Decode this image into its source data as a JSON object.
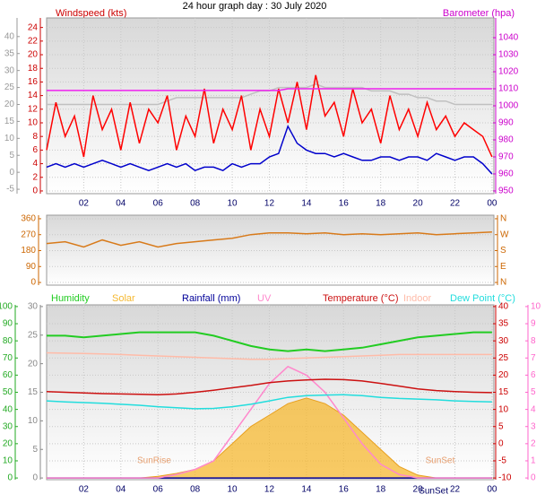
{
  "chart_data": [
    {
      "type": "line",
      "title": "24 hour graph day : 30 July 2020",
      "ylabel": "Windspeed (kts)",
      "y2label": "Barometer (hpa)",
      "grid": true,
      "x": [
        0,
        0.5,
        1,
        1.5,
        2,
        2.5,
        3,
        3.5,
        4,
        4.5,
        5,
        5.5,
        6,
        6.5,
        7,
        7.5,
        8,
        8.5,
        9,
        9.5,
        10,
        10.5,
        11,
        11.5,
        12,
        12.5,
        13,
        13.5,
        14,
        14.5,
        15,
        15.5,
        16,
        16.5,
        17,
        17.5,
        18,
        18.5,
        19,
        19.5,
        20,
        20.5,
        21,
        21.5,
        22,
        22.5,
        23,
        23.5,
        24
      ],
      "xlim": [
        0,
        24.1
      ],
      "xticks": [
        {
          "value": 2,
          "label": "02"
        },
        {
          "value": 4,
          "label": "04"
        },
        {
          "value": 6,
          "label": "06"
        },
        {
          "value": 8,
          "label": "08"
        },
        10,
        12,
        14,
        16,
        18,
        20,
        22,
        {
          "value": 24,
          "label": "00"
        }
      ],
      "ylim": [
        -0.4,
        25.4
      ],
      "yticks": [
        0,
        2,
        4,
        6,
        8,
        10,
        12,
        14,
        16,
        18,
        20,
        22,
        24
      ],
      "y3lim": [
        -6.3,
        45.5
      ],
      "y3ticks": [
        -5,
        0,
        5,
        10,
        15,
        20,
        25,
        30,
        35,
        40
      ],
      "y2lim": [
        948.4,
        1051.6
      ],
      "y2ticks": [
        950,
        960,
        970,
        980,
        990,
        1000,
        1010,
        1020,
        1030,
        1040
      ],
      "series": [
        {
          "color": "#c0c0c0",
          "axis": "y3",
          "values": [
            20,
            20,
            20,
            20,
            20,
            20,
            20,
            20,
            20,
            20,
            20,
            20,
            20,
            21,
            22,
            22,
            22,
            22,
            22,
            22,
            22,
            22,
            23,
            24,
            24,
            25,
            25,
            25,
            25,
            26,
            25,
            25,
            25,
            25,
            25,
            24,
            24,
            24,
            23,
            23,
            22,
            22,
            21,
            21,
            20,
            20,
            20,
            20,
            20
          ]
        },
        {
          "color": "#ff0000",
          "values": [
            6,
            13,
            8,
            11,
            5,
            14,
            9,
            12,
            6,
            13,
            7,
            12,
            10,
            14,
            6,
            11,
            8,
            15,
            7,
            12,
            9,
            14,
            6,
            12,
            8,
            15,
            10,
            16,
            9,
            17,
            11,
            13,
            8,
            15,
            10,
            12,
            7,
            14,
            9,
            12,
            8,
            13,
            9,
            11,
            8,
            10,
            9,
            8,
            5
          ]
        },
        {
          "color": "#0000cc",
          "values": [
            3.5,
            4,
            3.5,
            4,
            3.5,
            4,
            4.5,
            4,
            3.5,
            4,
            3.5,
            3,
            3.5,
            4,
            3.5,
            4,
            3,
            3.5,
            3.5,
            3,
            4,
            3.5,
            4,
            4,
            5,
            5.5,
            9.5,
            7,
            6,
            5.5,
            5.5,
            5,
            5.5,
            5,
            4.5,
            4.5,
            5,
            5,
            4.5,
            5,
            5,
            4.5,
            5.5,
            5,
            4.5,
            5,
            5,
            4,
            2.5
          ]
        },
        {
          "color": "#ee22ee",
          "axis": "y2",
          "values": [
            1009,
            1009,
            1009,
            1009,
            1009,
            1009,
            1009,
            1009,
            1009,
            1009,
            1009,
            1009,
            1009,
            1009,
            1009,
            1009,
            1009,
            1009,
            1009,
            1009,
            1009,
            1009,
            1009,
            1009,
            1009,
            1009,
            1010,
            1010,
            1010,
            1010,
            1010,
            1010,
            1010,
            1010,
            1010,
            1010,
            1010,
            1010,
            1010,
            1010,
            1010,
            1010,
            1010,
            1010,
            1010,
            1010,
            1010,
            1010,
            1010
          ]
        }
      ]
    },
    {
      "type": "line",
      "grid": true,
      "x": [
        0,
        1,
        2,
        3,
        4,
        5,
        6,
        7,
        8,
        9,
        10,
        11,
        12,
        13,
        14,
        15,
        16,
        17,
        18,
        19,
        20,
        21,
        22,
        23,
        24
      ],
      "xlim": [
        0,
        24.1
      ],
      "ylim": [
        -15,
        380
      ],
      "yticks": [
        0,
        90,
        180,
        270,
        360
      ],
      "y2lim": [
        -15,
        380
      ],
      "y2ticks": [
        {
          "value": 0,
          "label": "N"
        },
        {
          "value": 90,
          "label": "E"
        },
        {
          "value": 180,
          "label": "S"
        },
        {
          "value": 270,
          "label": "W"
        },
        {
          "value": 360,
          "label": "N"
        }
      ],
      "series": [
        {
          "color": "#d87a1a",
          "values": [
            220,
            230,
            200,
            240,
            210,
            230,
            200,
            220,
            230,
            240,
            250,
            270,
            280,
            280,
            275,
            280,
            270,
            275,
            270,
            275,
            280,
            270,
            275,
            280,
            285
          ]
        }
      ]
    },
    {
      "type": "line",
      "grid": true,
      "annotations": [
        "SunRise",
        "SunSet",
        "SunSet"
      ],
      "x": [
        0,
        1,
        2,
        3,
        4,
        5,
        6,
        7,
        8,
        9,
        10,
        11,
        12,
        13,
        14,
        15,
        16,
        17,
        18,
        19,
        20,
        21,
        22,
        23,
        24
      ],
      "xlim": [
        0,
        24.1
      ],
      "xticks": [
        {
          "value": 2,
          "label": "02"
        },
        {
          "value": 4,
          "label": "04"
        },
        {
          "value": 6,
          "label": "06"
        },
        {
          "value": 8,
          "label": "08"
        },
        10,
        12,
        14,
        16,
        18,
        20,
        22,
        {
          "value": 24,
          "label": "00"
        }
      ],
      "ylim": [
        -1,
        101
      ],
      "yticks": [
        0,
        10,
        20,
        30,
        40,
        50,
        60,
        70,
        80,
        90,
        100
      ],
      "y3lim": [
        -0.3,
        30.3
      ],
      "y3ticks": [
        0,
        5,
        10,
        15,
        20,
        25,
        30
      ],
      "y2lim": [
        -10.5,
        40.5
      ],
      "y2ticks": [
        -10,
        -5,
        0,
        5,
        10,
        15,
        20,
        25,
        30,
        35,
        40
      ],
      "y4lim": [
        -0.1,
        10.1
      ],
      "y4ticks": [
        0,
        1,
        2,
        3,
        4,
        5,
        6,
        7,
        8,
        9,
        10
      ],
      "series": [
        {
          "name": "Humidity",
          "color": "#22cc22",
          "values": [
            83,
            83,
            82,
            83,
            84,
            85,
            85,
            85,
            85,
            83,
            80,
            77,
            75,
            74,
            75,
            74,
            75,
            76,
            78,
            80,
            82,
            83,
            84,
            85,
            85
          ]
        },
        {
          "name": "Solar",
          "color": "#f5b830",
          "type": "area",
          "axis": "y3",
          "values": [
            0,
            0,
            0,
            0,
            0,
            0,
            0.3,
            0.8,
            1.5,
            3,
            6,
            9,
            11,
            13,
            14,
            13,
            11,
            8,
            5,
            2,
            0.5,
            0,
            0,
            0,
            0
          ]
        },
        {
          "name": "Rainfall (mm)",
          "color": "#000099",
          "axis": "y3",
          "values": [
            0,
            0,
            0,
            0,
            0,
            0,
            0,
            0,
            0,
            0,
            0,
            0,
            0,
            0,
            0,
            0,
            0,
            0,
            0,
            0,
            0,
            0,
            0,
            0,
            0
          ]
        },
        {
          "name": "UV",
          "color": "#ff88cc",
          "axis": "y4",
          "values": [
            0,
            0,
            0,
            0,
            0,
            0,
            0,
            0.2,
            0.5,
            1,
            2.5,
            4,
            5.5,
            6.5,
            6,
            5,
            3.5,
            2,
            0.8,
            0.2,
            0,
            0,
            0,
            0,
            0
          ]
        },
        {
          "name": "Temperature (°C)",
          "color": "#cc1111",
          "axis": "y2",
          "values": [
            15.2,
            15,
            14.8,
            14.6,
            14.5,
            14.4,
            14.3,
            14.5,
            15,
            15.6,
            16.3,
            17,
            17.8,
            18.3,
            18.6,
            18.8,
            18.7,
            18.3,
            17.6,
            16.8,
            16,
            15.5,
            15.2,
            15,
            14.9
          ]
        },
        {
          "name": "Indoor",
          "color": "#ffbba8",
          "axis": "y2",
          "values": [
            26.5,
            26.4,
            26.3,
            26.2,
            26,
            25.8,
            25.6,
            25.4,
            25.2,
            25,
            24.8,
            24.6,
            24.6,
            24.8,
            25,
            25.2,
            25.4,
            25.6,
            25.8,
            26,
            26,
            26,
            26,
            26,
            26
          ]
        },
        {
          "name": "Dew Point (°C)",
          "color": "#22dddd",
          "axis": "y2",
          "values": [
            12.5,
            12.2,
            12,
            11.8,
            11.5,
            11.2,
            10.8,
            10.5,
            10.2,
            10.3,
            10.8,
            11.5,
            12.5,
            13.5,
            14,
            14.2,
            14.3,
            14,
            13.5,
            13.2,
            13,
            12.8,
            12.5,
            12.3,
            12.2
          ]
        }
      ]
    }
  ]
}
